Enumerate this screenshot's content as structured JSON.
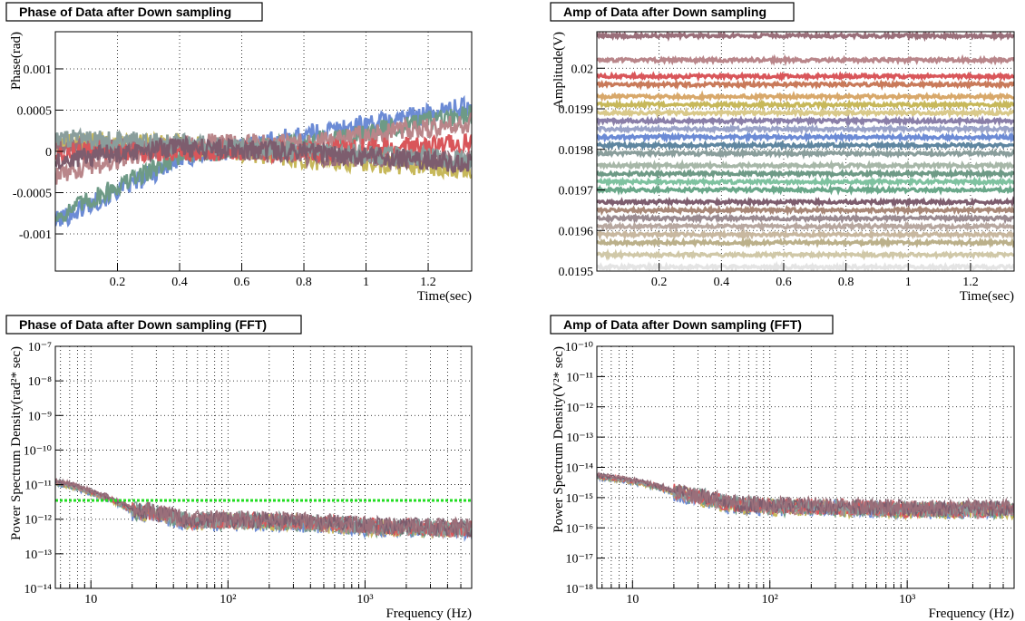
{
  "panels": [
    {
      "title": "Phase of Data after Down sampling"
    },
    {
      "title": "Amp of Data after Down sampling"
    },
    {
      "title": "Phase of Data after Down sampling (FFT)"
    },
    {
      "title": "Amp of Data after Down sampling (FFT)"
    }
  ],
  "chart_data": [
    {
      "type": "line",
      "title": "Phase of Data after Down sampling",
      "xlabel": "Time(sec)",
      "ylabel": "Phase(rad)",
      "xlim": [
        0.0,
        1.34
      ],
      "ylim": [
        -0.00145,
        0.00145
      ],
      "x_ticks": [
        0.2,
        0.4,
        0.6,
        0.8,
        1,
        1.2
      ],
      "x_tick_labels": [
        "0.2",
        "0.4",
        "0.6",
        "0.8",
        "1",
        "1.2"
      ],
      "y_ticks": [
        -0.001,
        -0.0005,
        0,
        0.0005,
        0.001
      ],
      "y_tick_labels": [
        "-0.001",
        "-0.0005",
        "0",
        "0.0005",
        "0.001"
      ],
      "grid": true,
      "series_colors": [
        "#6c8bd5",
        "#c7b85a",
        "#6e9a86",
        "#b9868a",
        "#9a6f7a",
        "#d9565a",
        "#8a9e9c",
        "#7d5d6e"
      ],
      "series_trends": [
        {
          "x": [
            0.0,
            0.4,
            0.8,
            1.34
          ],
          "y": [
            -0.00085,
            -0.0001,
            0.0002,
            0.00055
          ]
        },
        {
          "x": [
            0.0,
            0.4,
            0.8,
            1.34
          ],
          "y": [
            0.0001,
            0.0001,
            -0.0001,
            -0.0002
          ]
        },
        {
          "x": [
            0.0,
            0.4,
            0.8,
            1.34
          ],
          "y": [
            -0.0008,
            -5e-05,
            0.0001,
            0.00045
          ]
        },
        {
          "x": [
            0.0,
            0.4,
            0.8,
            1.34
          ],
          "y": [
            -0.0003,
            0.0001,
            0.0001,
            0.00035
          ]
        },
        {
          "x": [
            0.0,
            0.4,
            0.8,
            1.34
          ],
          "y": [
            5e-05,
            5e-05,
            -5e-05,
            -0.0001
          ]
        },
        {
          "x": [
            0.0,
            0.4,
            0.8,
            1.34
          ],
          "y": [
            0.0,
            0.0,
            0.0,
            0.0001
          ]
        },
        {
          "x": [
            0.0,
            0.4,
            0.8,
            1.34
          ],
          "y": [
            0.00015,
            0.0001,
            0.0,
            -0.0001
          ]
        },
        {
          "x": [
            0.0,
            0.4,
            0.8,
            1.34
          ],
          "y": [
            -0.0001,
            5e-05,
            0.0,
            -0.00015
          ]
        }
      ],
      "noise_amplitude": 0.00012
    },
    {
      "type": "line",
      "title": "Amp of Data after Down sampling",
      "xlabel": "Time(sec)",
      "ylabel": "Amplitude(V)",
      "xlim": [
        0.0,
        1.34
      ],
      "ylim": [
        0.0195,
        0.02009
      ],
      "x_ticks": [
        0.2,
        0.4,
        0.6,
        0.8,
        1,
        1.2
      ],
      "x_tick_labels": [
        "0.2",
        "0.4",
        "0.6",
        "0.8",
        "1",
        "1.2"
      ],
      "y_ticks": [
        0.0195,
        0.0196,
        0.0197,
        0.0198,
        0.0199,
        0.02
      ],
      "y_tick_labels": [
        "0.0195",
        "0.0196",
        "0.0197",
        "0.0198",
        "0.0199",
        "0.02"
      ],
      "grid": true,
      "series_colors": [
        "#9a6f7a",
        "#b9868a",
        "#d9565a",
        "#c97a5a",
        "#d8a86a",
        "#c7b85a",
        "#d9c98a",
        "#8a7fa8",
        "#9aa3c8",
        "#6c8bd5",
        "#5f86a0",
        "#8a9e9c",
        "#a7b7a8",
        "#6e9a86",
        "#7fc2a0",
        "#6aa88a",
        "#7d5d6e",
        "#a88878",
        "#9a8a90",
        "#b8a8a0",
        "#c8b8a0",
        "#bbb08a",
        "#d0c8a8",
        "#e4e4e4"
      ],
      "series_levels": [
        0.02008,
        0.02002,
        0.01998,
        0.01996,
        0.01993,
        0.01991,
        0.01989,
        0.01987,
        0.01985,
        0.01983,
        0.01981,
        0.01979,
        0.01976,
        0.01974,
        0.01972,
        0.0197,
        0.01967,
        0.01965,
        0.01963,
        0.01961,
        0.01959,
        0.01957,
        0.01954,
        0.01951
      ],
      "noise_amplitude": 1.2e-05
    },
    {
      "type": "line",
      "title": "Phase of Data after Down sampling (FFT)",
      "xlabel": "Frequency (Hz)",
      "ylabel": "Power Spectrum Density(rad²* sec)",
      "xscale": "log",
      "yscale": "log",
      "xlim": [
        5.5,
        6000
      ],
      "ylim": [
        1e-14,
        1e-07
      ],
      "x_ticks": [
        10,
        100,
        1000
      ],
      "x_tick_labels": [
        "10",
        "10²",
        "10³"
      ],
      "y_ticks": [
        1e-14,
        1e-13,
        1e-12,
        1e-11,
        1e-10,
        1e-09,
        1e-08,
        1e-07
      ],
      "y_tick_labels": [
        "10⁻¹⁴",
        "10⁻¹³",
        "10⁻¹²",
        "10⁻¹¹",
        "10⁻¹⁰",
        "10⁻⁹",
        "10⁻⁸",
        "10⁻⁷"
      ],
      "grid": true,
      "series_colors": [
        "#6c8bd5",
        "#c7b85a",
        "#6e9a86",
        "#b9868a",
        "#d9565a",
        "#8a9e9c",
        "#7d5d6e",
        "#9a6f7a"
      ],
      "spectrum_shape": {
        "x": [
          5.5,
          10,
          20,
          50,
          100,
          1000,
          6000
        ],
        "y": [
          1.2e-11,
          6e-12,
          1.8e-12,
          9e-13,
          9e-13,
          6e-13,
          5e-13
        ]
      },
      "reference_line": {
        "y": 3.5e-12,
        "color": "#22dd22"
      },
      "noise_decades": 0.25
    },
    {
      "type": "line",
      "title": "Amp of Data after Down sampling (FFT)",
      "xlabel": "Frequency (Hz)",
      "ylabel": "Power Spectrum Density(V²* sec)",
      "xscale": "log",
      "yscale": "log",
      "xlim": [
        5.5,
        6000
      ],
      "ylim": [
        1e-18,
        1e-10
      ],
      "x_ticks": [
        10,
        100,
        1000
      ],
      "x_tick_labels": [
        "10",
        "10²",
        "10³"
      ],
      "y_ticks": [
        1e-18,
        1e-17,
        1e-16,
        1e-15,
        1e-14,
        1e-13,
        1e-12,
        1e-11,
        1e-10
      ],
      "y_tick_labels": [
        "10⁻¹⁸",
        "10⁻¹⁷",
        "10⁻¹⁶",
        "10⁻¹⁵",
        "10⁻¹⁴",
        "10⁻¹³",
        "10⁻¹²",
        "10⁻¹¹",
        "10⁻¹⁰"
      ],
      "grid": true,
      "series_colors": [
        "#6c8bd5",
        "#c7b85a",
        "#6e9a86",
        "#b9868a",
        "#d9565a",
        "#8a9e9c",
        "#7d5d6e",
        "#9a6f7a"
      ],
      "spectrum_shape": {
        "x": [
          5.5,
          10,
          20,
          50,
          100,
          1000,
          6000
        ],
        "y": [
          5e-15,
          3.5e-15,
          1.5e-15,
          6e-16,
          5e-16,
          4e-16,
          4e-16
        ]
      },
      "noise_decades": 0.28
    }
  ]
}
